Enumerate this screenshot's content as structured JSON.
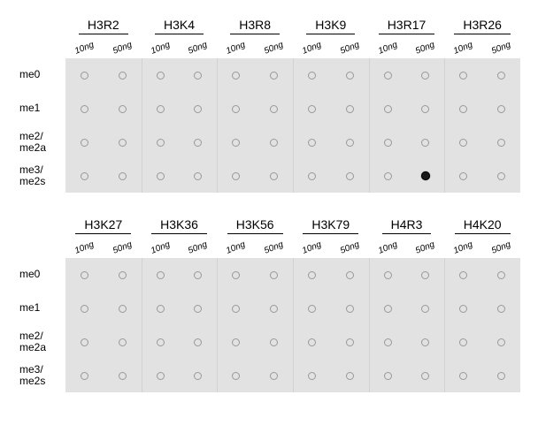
{
  "panels": [
    {
      "sites": [
        "H3R2",
        "H3K4",
        "H3R8",
        "H3K9",
        "H3R17",
        "H3R26"
      ],
      "concentrations": [
        "10ng",
        "50ng"
      ],
      "rows": [
        {
          "label": "me0",
          "positive": []
        },
        {
          "label": "me1",
          "positive": []
        },
        {
          "label": "me2/\nme2a",
          "positive": []
        },
        {
          "label": "me3/\nme2s",
          "positive": [
            [
              4,
              1
            ]
          ]
        }
      ]
    },
    {
      "sites": [
        "H3K27",
        "H3K36",
        "H3K56",
        "H3K79",
        "H4R3",
        "H4K20"
      ],
      "concentrations": [
        "10ng",
        "50ng"
      ],
      "rows": [
        {
          "label": "me0",
          "positive": []
        },
        {
          "label": "me1",
          "positive": []
        },
        {
          "label": "me2/\nme2a",
          "positive": []
        },
        {
          "label": "me3/\nme2s",
          "positive": []
        }
      ]
    }
  ],
  "style": {
    "bg_color": "#e2e2e2",
    "dot_border": "#999999",
    "positive_fill": "#1a1a1a",
    "header_fontsize": 14,
    "label_fontsize": 12,
    "conc_fontsize": 10
  }
}
